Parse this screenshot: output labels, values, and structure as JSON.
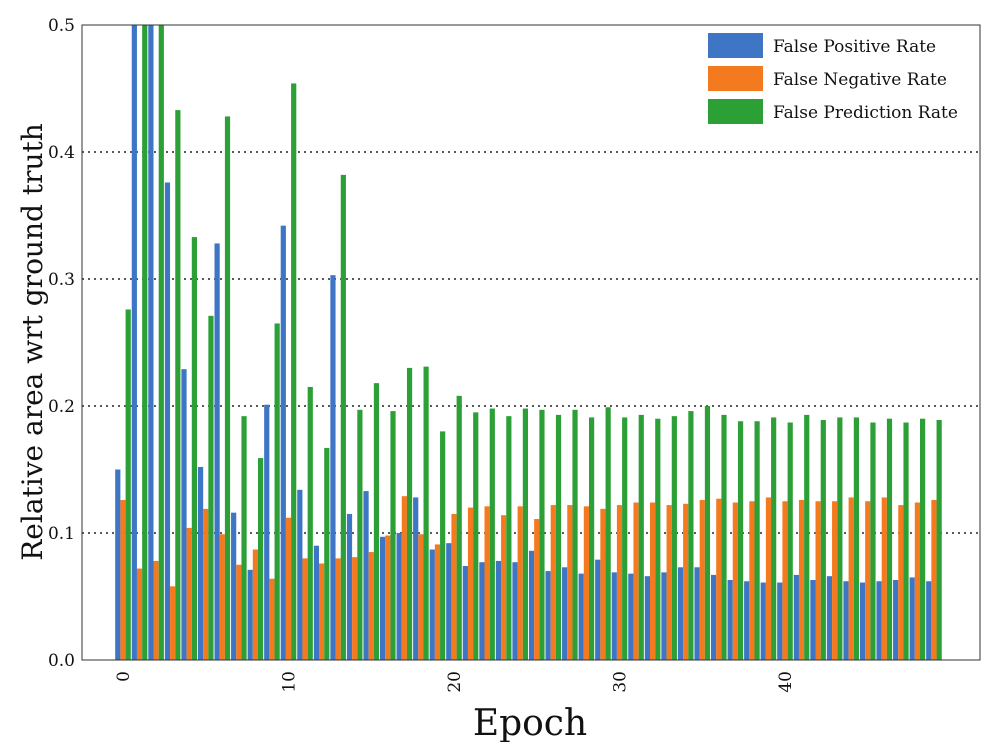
{
  "chart_data": {
    "type": "bar",
    "title": "",
    "xlabel": "Epoch",
    "ylabel": "Relative area wrt ground truth",
    "ylim": [
      0,
      0.5
    ],
    "yticks": [
      "0.0",
      "0.1",
      "0.2",
      "0.3",
      "0.4",
      "0.5"
    ],
    "xticks": [
      "0",
      "10",
      "20",
      "30",
      "40"
    ],
    "grid": "horizontal dotted",
    "legend_position": "top-right",
    "categories": [
      0,
      1,
      2,
      3,
      4,
      5,
      6,
      7,
      8,
      9,
      10,
      11,
      12,
      13,
      14,
      15,
      16,
      17,
      18,
      19,
      20,
      21,
      22,
      23,
      24,
      25,
      26,
      27,
      28,
      29,
      30,
      31,
      32,
      33,
      34,
      35,
      36,
      37,
      38,
      39,
      40,
      41,
      42,
      43,
      44,
      45,
      46,
      47,
      48,
      49
    ],
    "series": [
      {
        "name": "False Positive Rate",
        "color": "#3e75c4",
        "values": [
          0.15,
          0.5,
          0.5,
          0.376,
          0.229,
          0.152,
          0.328,
          0.116,
          0.071,
          0.201,
          0.342,
          0.134,
          0.09,
          0.303,
          0.115,
          0.133,
          0.097,
          0.1,
          0.128,
          0.087,
          0.092,
          0.074,
          0.077,
          0.078,
          0.077,
          0.086,
          0.07,
          0.073,
          0.068,
          0.079,
          0.069,
          0.068,
          0.066,
          0.069,
          0.073,
          0.073,
          0.067,
          0.063,
          0.062,
          0.061,
          0.061,
          0.067,
          0.063,
          0.066,
          0.062,
          0.061,
          0.062,
          0.063,
          0.065,
          0.062
        ]
      },
      {
        "name": "False Negative Rate",
        "color": "#f47a20",
        "values": [
          0.126,
          0.072,
          0.078,
          0.058,
          0.104,
          0.119,
          0.099,
          0.075,
          0.087,
          0.064,
          0.112,
          0.08,
          0.076,
          0.08,
          0.081,
          0.085,
          0.098,
          0.129,
          0.099,
          0.091,
          0.115,
          0.12,
          0.121,
          0.114,
          0.121,
          0.111,
          0.122,
          0.122,
          0.121,
          0.119,
          0.122,
          0.124,
          0.124,
          0.122,
          0.123,
          0.126,
          0.127,
          0.124,
          0.125,
          0.128,
          0.125,
          0.126,
          0.125,
          0.125,
          0.128,
          0.125,
          0.128,
          0.122,
          0.124,
          0.126
        ]
      },
      {
        "name": "False Prediction Rate",
        "color": "#2ca037",
        "values": [
          0.276,
          0.5,
          0.5,
          0.433,
          0.333,
          0.271,
          0.428,
          0.192,
          0.159,
          0.265,
          0.454,
          0.215,
          0.167,
          0.382,
          0.197,
          0.218,
          0.196,
          0.23,
          0.231,
          0.18,
          0.208,
          0.195,
          0.198,
          0.192,
          0.198,
          0.197,
          0.193,
          0.197,
          0.191,
          0.199,
          0.191,
          0.193,
          0.19,
          0.192,
          0.196,
          0.2,
          0.193,
          0.188,
          0.188,
          0.191,
          0.187,
          0.193,
          0.189,
          0.191,
          0.191,
          0.187,
          0.19,
          0.187,
          0.19,
          0.189
        ]
      }
    ]
  }
}
